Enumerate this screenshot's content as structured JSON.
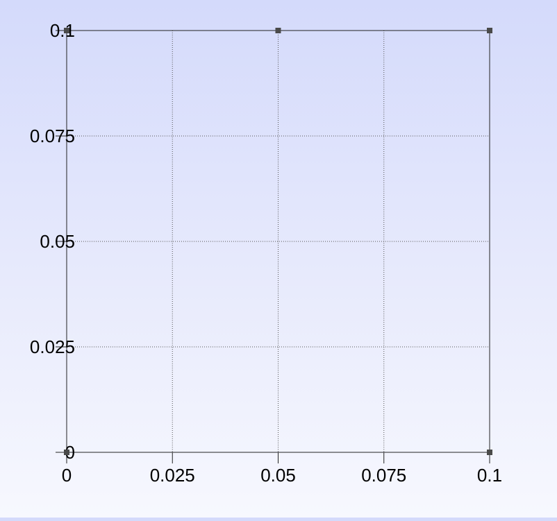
{
  "chart_data": {
    "type": "scatter",
    "title": "",
    "xlabel": "",
    "ylabel": "",
    "xlim": [
      0,
      0.1
    ],
    "ylim": [
      0,
      0.1
    ],
    "xticks": [
      0,
      0.025,
      0.05,
      0.075,
      0.1
    ],
    "yticks": [
      0,
      0.025,
      0.05,
      0.075,
      0.1
    ],
    "xtick_labels": [
      "0",
      "0.025",
      "0.05",
      "0.075",
      "0.1"
    ],
    "ytick_labels": [
      "0",
      "0.025",
      "0.05",
      "0.075",
      "0.1"
    ],
    "grid": true,
    "legend": "none",
    "series": [
      {
        "points": [
          {
            "x": 0,
            "y": 0
          },
          {
            "x": 0.1,
            "y": 0
          },
          {
            "x": 0,
            "y": 0.1
          },
          {
            "x": 0.05,
            "y": 0.1
          },
          {
            "x": 0.1,
            "y": 0.1
          }
        ]
      }
    ],
    "colors": {
      "marker": "#4a4a4a",
      "axis": "#222222",
      "grid": "#555555",
      "background_top": "#d4dafb",
      "background_bottom": "#f7f8fe"
    }
  }
}
